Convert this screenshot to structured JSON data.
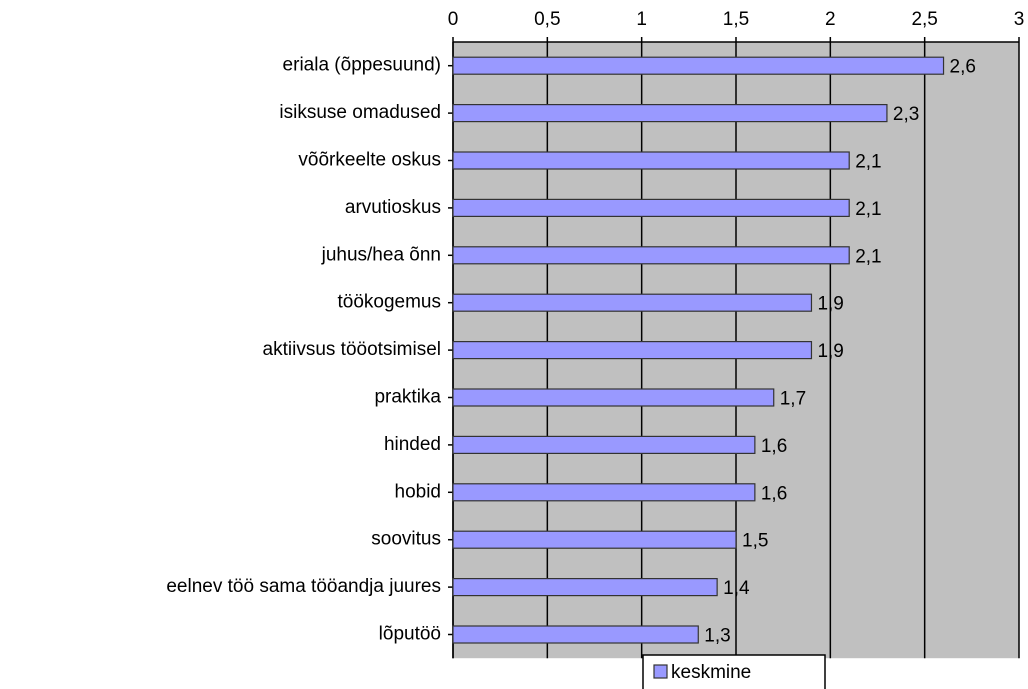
{
  "chart_data": {
    "type": "bar",
    "orientation": "horizontal",
    "categories": [
      "eriala (õppesuund)",
      "isiksuse omadused",
      "võõrkeelte oskus",
      "arvutioskus",
      "juhus/hea õnn",
      "töökogemus",
      "aktiivsus tööotsimisel",
      "praktika",
      "hinded",
      "hobid",
      "soovitus",
      "eelnev töö sama tööandja juures",
      "lõputöö"
    ],
    "series": [
      {
        "name": "keskmine",
        "color": "#9999ff",
        "values": [
          2.6,
          2.3,
          2.1,
          2.1,
          2.1,
          1.9,
          1.9,
          1.7,
          1.6,
          1.6,
          1.5,
          1.4,
          1.3
        ],
        "value_labels": [
          "2,6",
          "2,3",
          "2,1",
          "2,1",
          "2,1",
          "1,9",
          "1,9",
          "1,7",
          "1,6",
          "1,6",
          "1,5",
          "1,4",
          "1,3"
        ]
      }
    ],
    "xlim": [
      0,
      3
    ],
    "xticks": [
      0,
      {
        "value": 0.5,
        "label": "0,5"
      },
      1,
      {
        "value": 1.5,
        "label": "1,5"
      },
      2,
      {
        "value": 2.5,
        "label": "2,5"
      },
      3
    ],
    "grid": true,
    "plot_background": "#c0c0c0",
    "legend": "bottom"
  }
}
